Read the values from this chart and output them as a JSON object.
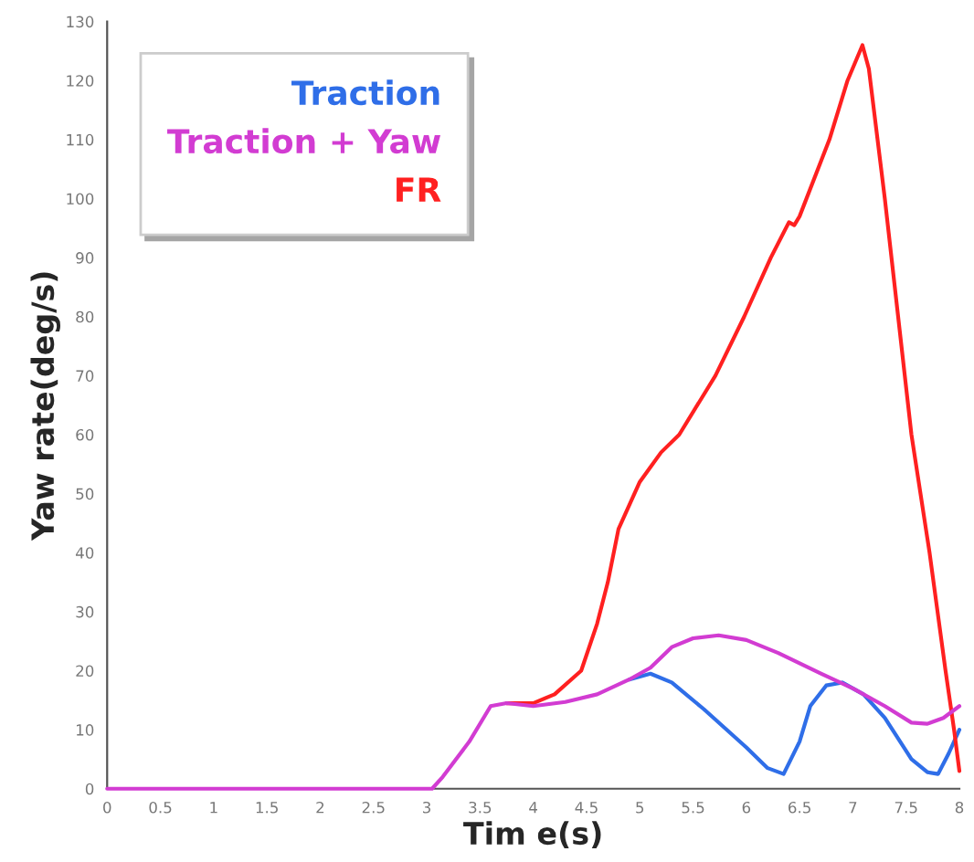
{
  "chart_data": {
    "type": "line",
    "xlabel": "Tim e(s)",
    "ylabel": "Yaw rate(deg/s)",
    "xlim": [
      0,
      8
    ],
    "ylim": [
      0,
      130
    ],
    "xticks": [
      0,
      0.5,
      1,
      1.5,
      2,
      2.5,
      3,
      3.5,
      4,
      4.5,
      5,
      5.5,
      6,
      6.5,
      7,
      7.5,
      8
    ],
    "yticks": [
      0,
      10,
      20,
      30,
      40,
      50,
      60,
      70,
      80,
      90,
      100,
      110,
      120,
      130
    ],
    "grid": false,
    "legend": "top left",
    "marker": "none",
    "line_style": "solid",
    "series": [
      {
        "name": "Traction",
        "color": "#2f6ee8",
        "x": [
          4.9,
          5.1,
          5.3,
          5.6,
          6.0,
          6.2,
          6.35,
          6.5,
          6.6,
          6.75,
          6.9,
          7.1,
          7.3,
          7.55,
          7.7,
          7.8,
          7.9,
          8.0
        ],
        "values": [
          18.5,
          19.5,
          18,
          13.5,
          7,
          3.5,
          2.5,
          8,
          14,
          17.5,
          18,
          16,
          12,
          5,
          2.8,
          2.5,
          6,
          10
        ]
      },
      {
        "name": "Traction + Yaw",
        "color": "#d23cd2",
        "x": [
          0,
          1,
          2,
          3,
          3.05,
          3.15,
          3.4,
          3.6,
          3.75,
          4.0,
          4.3,
          4.6,
          4.9,
          5.1,
          5.3,
          5.5,
          5.74,
          6.0,
          6.3,
          6.7,
          7.0,
          7.3,
          7.55,
          7.7,
          7.85,
          8.0
        ],
        "values": [
          0,
          0,
          0,
          0,
          0,
          2,
          8,
          14,
          14.5,
          14,
          14.7,
          16,
          18.5,
          20.5,
          24,
          25.5,
          26,
          25.2,
          23,
          19.5,
          17,
          14,
          11.2,
          11,
          12,
          14
        ]
      },
      {
        "name": "FR",
        "color": "#ff2020",
        "x": [
          3.75,
          4.0,
          4.2,
          4.45,
          4.6,
          4.7,
          4.8,
          5.0,
          5.2,
          5.37,
          5.71,
          5.98,
          6.23,
          6.4,
          6.45,
          6.5,
          6.78,
          6.95,
          7.09,
          7.15,
          7.3,
          7.55,
          7.72,
          7.87,
          7.95,
          8.0
        ],
        "values": [
          14.5,
          14.5,
          16,
          20,
          28,
          35,
          44,
          52,
          57,
          60,
          70,
          80,
          90,
          96,
          95.5,
          97,
          110,
          120,
          126,
          122,
          100,
          60,
          40,
          20,
          10,
          3
        ]
      }
    ]
  }
}
